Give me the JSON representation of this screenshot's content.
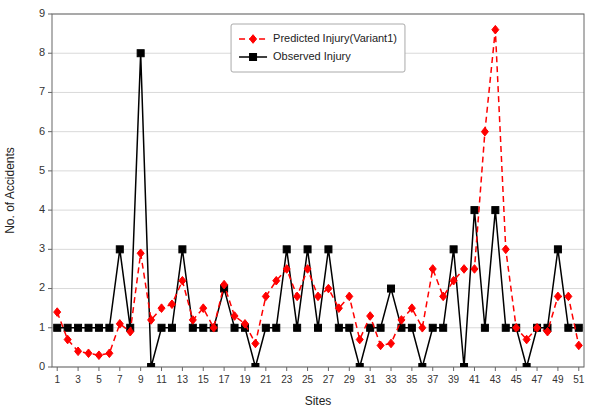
{
  "chart_data": {
    "type": "line",
    "x": [
      1,
      2,
      3,
      4,
      5,
      6,
      7,
      8,
      9,
      10,
      11,
      12,
      13,
      14,
      15,
      16,
      17,
      18,
      19,
      20,
      21,
      22,
      23,
      24,
      25,
      26,
      27,
      28,
      29,
      30,
      31,
      32,
      33,
      34,
      35,
      36,
      37,
      38,
      39,
      40,
      41,
      42,
      43,
      44,
      45,
      46,
      47,
      48,
      49,
      50,
      51
    ],
    "series": [
      {
        "name": "Predicted Injury(Variant1)",
        "color": "#ff0000",
        "marker": "diamond",
        "line_style": "dashed",
        "values": [
          1.4,
          0.7,
          0.4,
          0.35,
          0.3,
          0.35,
          1.1,
          0.9,
          2.9,
          1.2,
          1.5,
          1.6,
          2.2,
          1.2,
          1.5,
          1.0,
          2.1,
          1.3,
          1.1,
          0.6,
          1.8,
          2.2,
          2.5,
          1.8,
          2.5,
          1.8,
          2.0,
          1.5,
          1.8,
          0.7,
          1.3,
          0.55,
          0.6,
          1.2,
          1.5,
          1.0,
          2.5,
          1.8,
          2.2,
          2.5,
          2.5,
          6.0,
          8.6,
          3.0,
          1.0,
          0.7,
          1.0,
          0.9,
          1.8,
          1.8,
          0.55
        ]
      },
      {
        "name": "Observed Injury",
        "color": "#000000",
        "marker": "square",
        "line_style": "solid",
        "values": [
          1,
          1,
          1,
          1,
          1,
          1,
          3,
          1,
          8,
          0,
          1,
          1,
          3,
          1,
          1,
          1,
          2,
          1,
          1,
          0,
          1,
          1,
          3,
          1,
          3,
          1,
          3,
          1,
          1,
          0,
          1,
          1,
          2,
          1,
          1,
          0,
          1,
          1,
          3,
          0,
          4,
          1,
          4,
          1,
          1,
          0,
          1,
          1,
          3,
          1,
          1
        ]
      }
    ],
    "xlabel": "Sites",
    "ylabel": "No. of Accidents",
    "xlim": [
      0.5,
      51.5
    ],
    "ylim": [
      0,
      9
    ],
    "xticks": [
      1,
      3,
      5,
      7,
      9,
      11,
      13,
      15,
      17,
      19,
      21,
      23,
      25,
      27,
      29,
      31,
      33,
      35,
      37,
      39,
      41,
      43,
      45,
      47,
      49,
      51
    ],
    "yticks": [
      0,
      1,
      2,
      3,
      4,
      5,
      6,
      7,
      8,
      9
    ],
    "grid": true,
    "legend": "top"
  }
}
